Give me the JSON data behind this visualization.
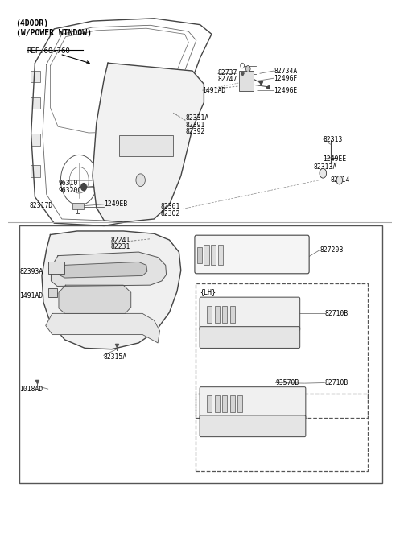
{
  "title_line1": "(4DOOR)",
  "title_line2": "(W/POWER WINDOW)",
  "ref_text": "REF.60-760",
  "bg_color": "#ffffff",
  "text_color": "#000000",
  "line_color": "#555555",
  "fig_width": 4.8,
  "fig_height": 6.55
}
